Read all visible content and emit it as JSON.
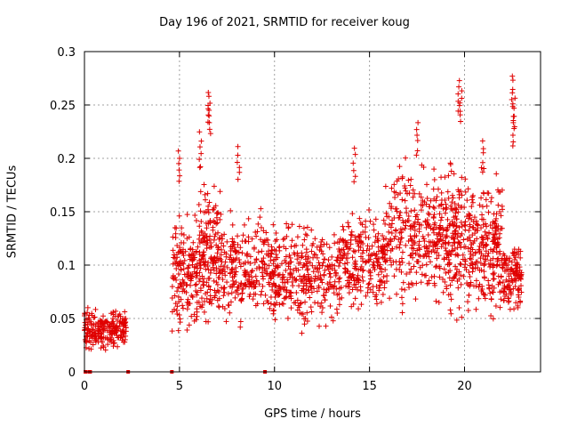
{
  "chart_data": {
    "type": "scatter",
    "title": "Day 196 of 2021, SRMTID for receiver koug",
    "xlabel": "GPS time / hours",
    "ylabel": "SRMTID / TECUs",
    "xlim": [
      0,
      24
    ],
    "ylim": [
      0,
      0.3
    ],
    "xticks": [
      0,
      5,
      10,
      15,
      20
    ],
    "yticks": [
      0,
      0.05,
      0.1,
      0.15,
      0.2,
      0.25,
      0.3
    ],
    "grid": true,
    "marker": "+",
    "color": "#e00000",
    "clusters": [
      {
        "x0": 0.0,
        "x1": 2.2,
        "ymin": 0.015,
        "ymax": 0.065,
        "n": 220
      },
      {
        "x0": 4.6,
        "x1": 6.0,
        "ymin": 0.02,
        "ymax": 0.16,
        "n": 160
      },
      {
        "x0": 6.0,
        "x1": 7.2,
        "ymin": 0.03,
        "ymax": 0.2,
        "n": 180
      },
      {
        "x0": 7.2,
        "x1": 10.0,
        "ymin": 0.03,
        "ymax": 0.16,
        "n": 260
      },
      {
        "x0": 10.0,
        "x1": 13.5,
        "ymin": 0.03,
        "ymax": 0.15,
        "n": 320
      },
      {
        "x0": 13.5,
        "x1": 15.8,
        "ymin": 0.04,
        "ymax": 0.17,
        "n": 220
      },
      {
        "x0": 15.8,
        "x1": 18.5,
        "ymin": 0.05,
        "ymax": 0.21,
        "n": 260
      },
      {
        "x0": 18.5,
        "x1": 20.2,
        "ymin": 0.03,
        "ymax": 0.22,
        "n": 220
      },
      {
        "x0": 20.2,
        "x1": 22.0,
        "ymin": 0.03,
        "ymax": 0.2,
        "n": 240
      },
      {
        "x0": 22.0,
        "x1": 23.0,
        "ymin": 0.05,
        "ymax": 0.13,
        "n": 120
      }
    ],
    "peaks": [
      {
        "x": 5.0,
        "y": 0.21
      },
      {
        "x": 6.1,
        "y": 0.225
      },
      {
        "x": 6.5,
        "y": 0.265
      },
      {
        "x": 6.6,
        "y": 0.255
      },
      {
        "x": 8.1,
        "y": 0.212
      },
      {
        "x": 14.2,
        "y": 0.21
      },
      {
        "x": 17.5,
        "y": 0.235
      },
      {
        "x": 19.7,
        "y": 0.275
      },
      {
        "x": 19.8,
        "y": 0.265
      },
      {
        "x": 21.0,
        "y": 0.218
      },
      {
        "x": 22.5,
        "y": 0.28
      },
      {
        "x": 22.6,
        "y": 0.26
      },
      {
        "x": 22.6,
        "y": 0.242
      }
    ],
    "zero_points": [
      0.05,
      0.25,
      0.3,
      2.3,
      4.6,
      9.5
    ]
  }
}
